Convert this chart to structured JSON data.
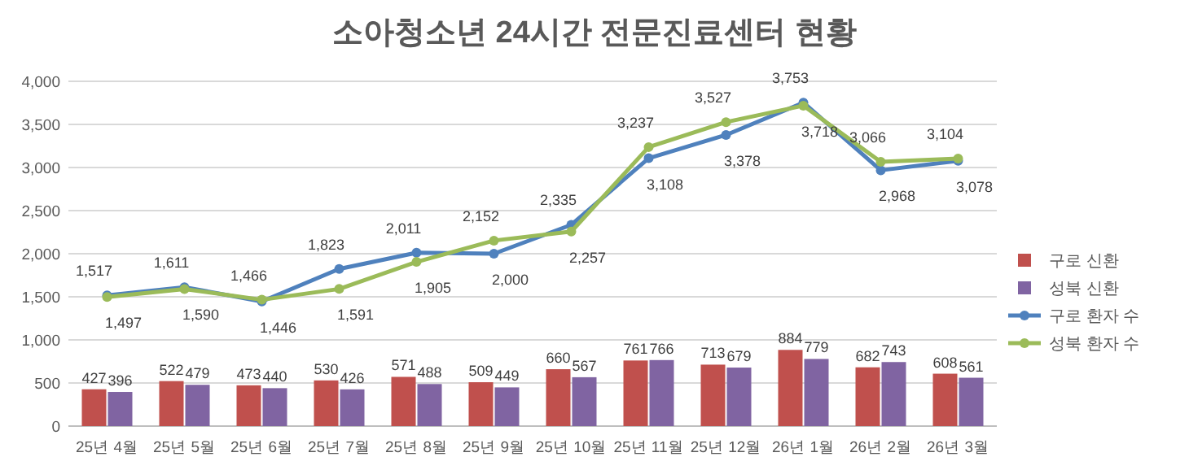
{
  "chart_data": {
    "type": "bar",
    "title": "소아청소년 24시간 전문진료센터 현황",
    "categories": [
      "25년 4월",
      "25년 5월",
      "25년 6월",
      "25년 7월",
      "25년 8월",
      "25년 9월",
      "25년 10월",
      "25년 11월",
      "25년 12월",
      "26년 1월",
      "26년 2월",
      "26년 3월"
    ],
    "series": [
      {
        "name": "구로 신환",
        "color": "#c0504d",
        "values": [
          427,
          522,
          473,
          530,
          571,
          509,
          660,
          761,
          713,
          884,
          682,
          608
        ],
        "value_labels": [
          "427",
          "522",
          "473",
          "530",
          "571",
          "509",
          "660",
          "761",
          "713",
          "884",
          "682",
          "608"
        ]
      },
      {
        "name": "성북 신환",
        "color": "#8064a2",
        "values": [
          396,
          479,
          440,
          426,
          488,
          449,
          567,
          766,
          679,
          779,
          743,
          561
        ],
        "value_labels": [
          "396",
          "479",
          "440",
          "426",
          "488",
          "449",
          "567",
          "766",
          "679",
          "779",
          "743",
          "561"
        ]
      },
      {
        "name": "구로 환자 수",
        "type": "line",
        "color": "#4f81bd",
        "values": [
          1517,
          1611,
          1446,
          1823,
          2011,
          2000,
          2335,
          3108,
          3378,
          3753,
          2968,
          3078
        ],
        "value_labels": [
          "1,517",
          "1,611",
          "1,446",
          "1,823",
          "2,011",
          "2,000",
          "2,335",
          "3,108",
          "3,378",
          "3,753",
          "2,968",
          "3,078"
        ]
      },
      {
        "name": "성북 환자 수",
        "type": "line",
        "color": "#9bbb59",
        "values": [
          1497,
          1590,
          1466,
          1591,
          1905,
          2152,
          2257,
          3237,
          3527,
          3718,
          3066,
          3104
        ],
        "value_labels": [
          "1,497",
          "1,590",
          "1,466",
          "1,591",
          "1,905",
          "2,152",
          "2,257",
          "3,237",
          "3,527",
          "3,718",
          "3,066",
          "3,104"
        ]
      }
    ],
    "ylim": [
      0,
      4000
    ],
    "yticks": [
      0,
      500,
      {
        "value": 1000,
        "label": "1,000"
      },
      {
        "value": 1500,
        "label": "1,500"
      },
      {
        "value": 2000,
        "label": "2,000"
      },
      {
        "value": 2500,
        "label": "2,500"
      },
      {
        "value": 3000,
        "label": "3,000"
      },
      {
        "value": 3500,
        "label": "3,500"
      },
      {
        "value": 4000,
        "label": "4,000"
      }
    ],
    "grid": "y",
    "legend": "right",
    "marker": "circle",
    "line_style": "solid"
  }
}
